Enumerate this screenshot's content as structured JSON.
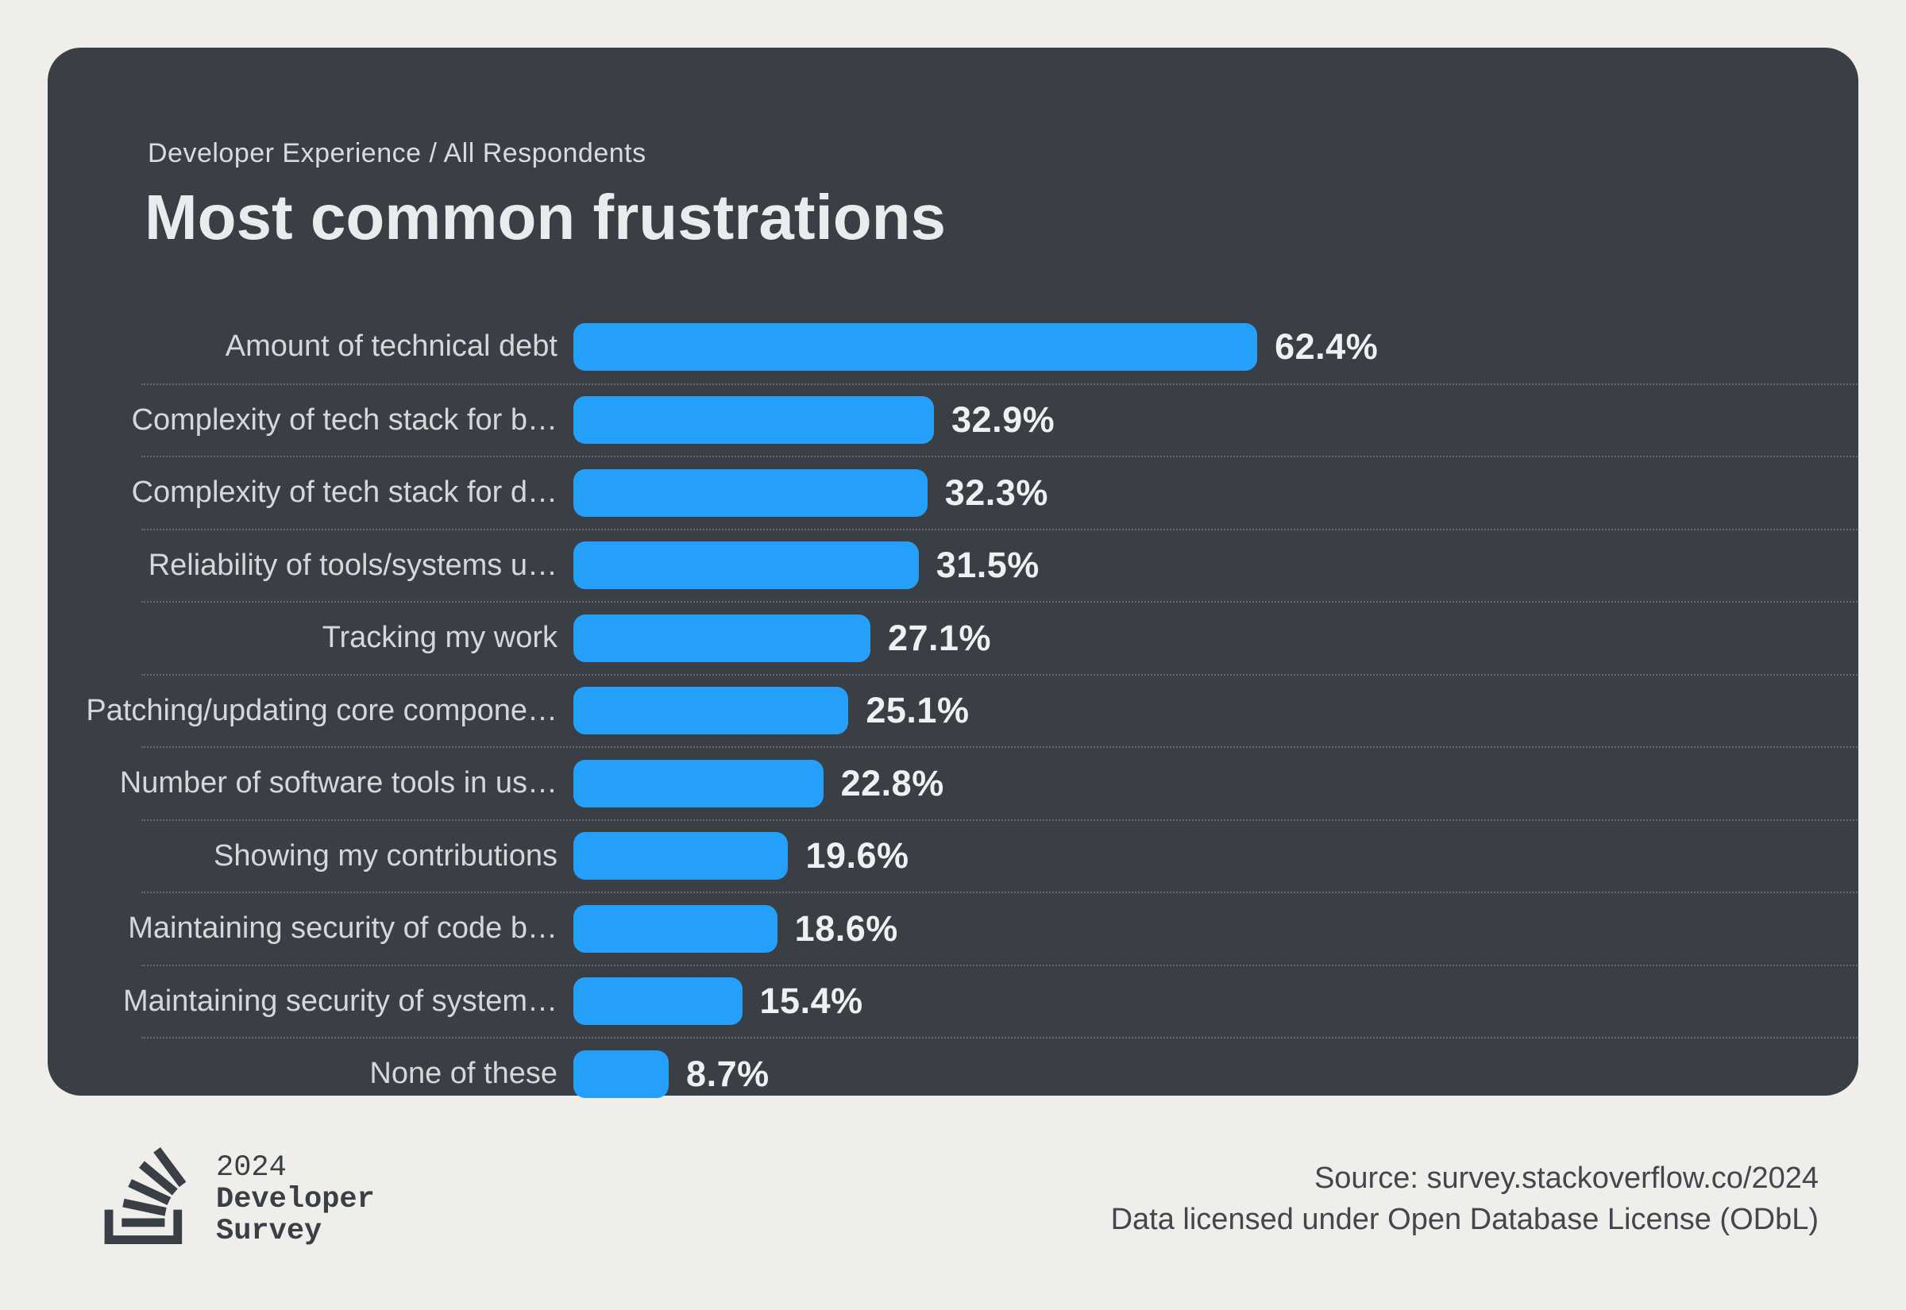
{
  "page": {
    "background_color": "#f0eeea"
  },
  "card": {
    "background_color": "#393f45"
  },
  "chart_data": {
    "type": "bar",
    "orientation": "horizontal",
    "title": "Most common frustrations",
    "subtitle": "Developer Experience / All Respondents",
    "categories": [
      "Amount of technical debt",
      "Complexity of tech stack for b…",
      "Complexity of tech stack for d…",
      "Reliability of tools/systems u…",
      "Tracking my work",
      "Patching/updating core compone…",
      "Number of software tools in us…",
      "Showing my contributions",
      "Maintaining security of code b…",
      "Maintaining security of system…",
      "None of these"
    ],
    "values": [
      62.4,
      32.9,
      32.3,
      31.5,
      27.1,
      25.1,
      22.8,
      19.6,
      18.6,
      15.4,
      8.7
    ],
    "value_labels": [
      "62.4%",
      "32.9%",
      "32.3%",
      "31.5%",
      "27.1%",
      "25.1%",
      "22.8%",
      "19.6%",
      "18.6%",
      "15.4%",
      "8.7%"
    ],
    "unit": "%",
    "bar_color": "#24a0fa",
    "label_color": "#d5d8db",
    "value_color": "#eef0f2",
    "xlim": [
      0,
      115
    ],
    "grid": false,
    "legend": false
  },
  "footer": {
    "logo_year": "2024",
    "logo_line1": "Developer",
    "logo_line2": "Survey",
    "logo_icon": "stackoverflow-logo-icon",
    "source_line1": "Source: survey.stackoverflow.co/2024",
    "source_line2": "Data licensed under Open Database License (ODbL)"
  }
}
